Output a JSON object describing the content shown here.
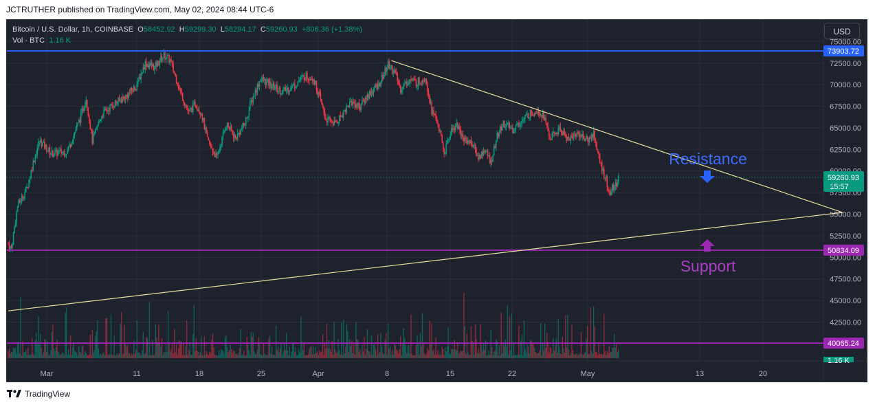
{
  "header": {
    "publish_text": "JCTRUTHER published on TradingView.com, May 02, 2024 08:44 UTC-6"
  },
  "legend": {
    "symbol": "Bitcoin / U.S. Dollar, 1h, COINBASE",
    "open_label": "O",
    "open": "58452.92",
    "high_label": "H",
    "high": "59299.30",
    "low_label": "L",
    "low": "58294.17",
    "close_label": "C",
    "close": "59260.93",
    "change": "+806.36 (+1.38%)",
    "vol_label": "Vol · BTC",
    "vol": "1.16 K"
  },
  "currency_button": "USD",
  "footer": {
    "brand": "TradingView"
  },
  "colors": {
    "up": "#089981",
    "down": "#f23645",
    "resistance_level": "#2962ff",
    "support_level": "#9c27b0",
    "trendline": "#e8e0a0",
    "resistance_text": "#3d6bff",
    "support_text": "#ab3fc4"
  },
  "chart_data": {
    "type": "candlestick",
    "x_ticks": [
      "Mar",
      "11",
      "18",
      "25",
      "Apr",
      "8",
      "15",
      "22",
      "May",
      "13",
      "20"
    ],
    "y_ticks": [
      "75000.00",
      "72500.00",
      "70000.00",
      "67500.00",
      "65000.00",
      "62500.00",
      "60000.00",
      "57500.00",
      "55000.00",
      "52500.00",
      "50000.00",
      "47500.00",
      "45000.00",
      "42500.00"
    ],
    "ylim": [
      38000,
      77500
    ],
    "price_path": [
      {
        "x": 0,
        "y": 51500
      },
      {
        "x": 1,
        "y": 51000
      },
      {
        "x": 3,
        "y": 56000
      },
      {
        "x": 6,
        "y": 58000
      },
      {
        "x": 8,
        "y": 61000
      },
      {
        "x": 10,
        "y": 63500
      },
      {
        "x": 14,
        "y": 62000
      },
      {
        "x": 19,
        "y": 62300
      },
      {
        "x": 23,
        "y": 66000
      },
      {
        "x": 25,
        "y": 68500
      },
      {
        "x": 27,
        "y": 63500
      },
      {
        "x": 30,
        "y": 66500
      },
      {
        "x": 34,
        "y": 67800
      },
      {
        "x": 38,
        "y": 68700
      },
      {
        "x": 41,
        "y": 69800
      },
      {
        "x": 44,
        "y": 72500
      },
      {
        "x": 47,
        "y": 72000
      },
      {
        "x": 50,
        "y": 73400
      },
      {
        "x": 52,
        "y": 72800
      },
      {
        "x": 55,
        "y": 69500
      },
      {
        "x": 58,
        "y": 66700
      },
      {
        "x": 60,
        "y": 67800
      },
      {
        "x": 62,
        "y": 66800
      },
      {
        "x": 64,
        "y": 63500
      },
      {
        "x": 67,
        "y": 61500
      },
      {
        "x": 70,
        "y": 65500
      },
      {
        "x": 73,
        "y": 63800
      },
      {
        "x": 76,
        "y": 65500
      },
      {
        "x": 78,
        "y": 68000
      },
      {
        "x": 81,
        "y": 70700
      },
      {
        "x": 84,
        "y": 70000
      },
      {
        "x": 88,
        "y": 69200
      },
      {
        "x": 92,
        "y": 70000
      },
      {
        "x": 95,
        "y": 71000
      },
      {
        "x": 98,
        "y": 70800
      },
      {
        "x": 100,
        "y": 68500
      },
      {
        "x": 102,
        "y": 66000
      },
      {
        "x": 105,
        "y": 65500
      },
      {
        "x": 107,
        "y": 66500
      },
      {
        "x": 110,
        "y": 68000
      },
      {
        "x": 113,
        "y": 67500
      },
      {
        "x": 116,
        "y": 69000
      },
      {
        "x": 119,
        "y": 70000
      },
      {
        "x": 122,
        "y": 72300
      },
      {
        "x": 124,
        "y": 71500
      },
      {
        "x": 126,
        "y": 69500
      },
      {
        "x": 129,
        "y": 70600
      },
      {
        "x": 131,
        "y": 70200
      },
      {
        "x": 134,
        "y": 70900
      },
      {
        "x": 136,
        "y": 67000
      },
      {
        "x": 138,
        "y": 65500
      },
      {
        "x": 140,
        "y": 62000
      },
      {
        "x": 142,
        "y": 64500
      },
      {
        "x": 144,
        "y": 65500
      },
      {
        "x": 146,
        "y": 63800
      },
      {
        "x": 149,
        "y": 63200
      },
      {
        "x": 151,
        "y": 61500
      },
      {
        "x": 153,
        "y": 62500
      },
      {
        "x": 155,
        "y": 61000
      },
      {
        "x": 157,
        "y": 64000
      },
      {
        "x": 159,
        "y": 65500
      },
      {
        "x": 162,
        "y": 64800
      },
      {
        "x": 165,
        "y": 65800
      },
      {
        "x": 167,
        "y": 66500
      },
      {
        "x": 170,
        "y": 67100
      },
      {
        "x": 172,
        "y": 66300
      },
      {
        "x": 174,
        "y": 63800
      },
      {
        "x": 177,
        "y": 64800
      },
      {
        "x": 180,
        "y": 63700
      },
      {
        "x": 183,
        "y": 64400
      },
      {
        "x": 186,
        "y": 63500
      },
      {
        "x": 188,
        "y": 64400
      },
      {
        "x": 190,
        "y": 61000
      },
      {
        "x": 192,
        "y": 59000
      },
      {
        "x": 193,
        "y": 57200
      },
      {
        "x": 194,
        "y": 58000
      },
      {
        "x": 195,
        "y": 58300
      },
      {
        "x": 196,
        "y": 59260
      }
    ],
    "horizontal_levels": [
      {
        "value": 73903.72,
        "label": "73903.72",
        "color": "#2962ff"
      },
      {
        "value": 50834.09,
        "label": "50834.09",
        "color": "#9c27b0"
      },
      {
        "value": 40065.24,
        "label": "40065.24",
        "color": "#9c27b0"
      }
    ],
    "trendlines": [
      {
        "from": {
          "x": 123,
          "y": 72800
        },
        "to": {
          "x": 268,
          "y": 55200
        }
      },
      {
        "from": {
          "x": 0,
          "y": 43800
        },
        "to": {
          "x": 268,
          "y": 55200
        }
      }
    ],
    "last_price": {
      "value": 59260.93,
      "label": "59260.93",
      "countdown": "15:57"
    },
    "volume_label": "1.16 K",
    "annotations": [
      {
        "text": "Resistance",
        "arrow": "down"
      },
      {
        "text": "Support",
        "arrow": "up"
      }
    ]
  }
}
